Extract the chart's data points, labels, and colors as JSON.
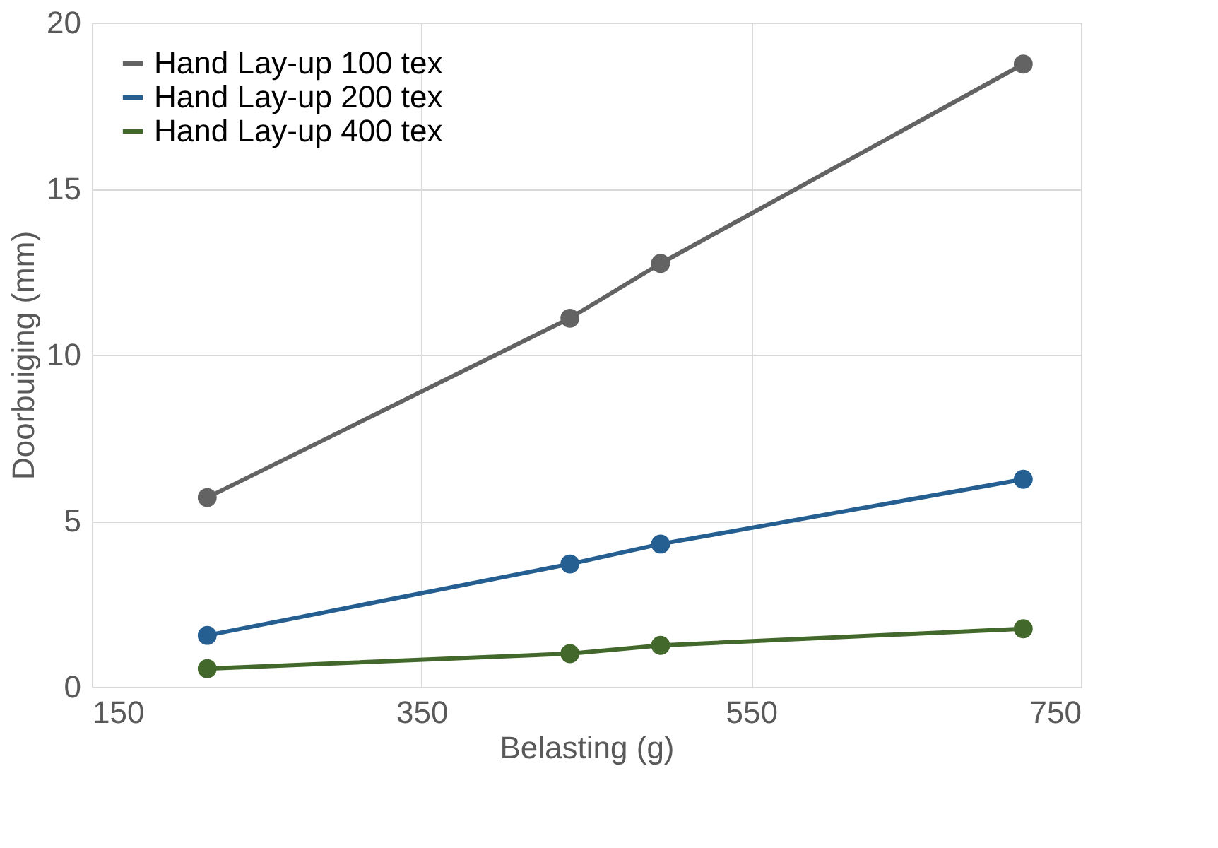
{
  "chart_data": {
    "type": "line",
    "xlabel": "Belasting (g)",
    "ylabel": "Doorbuiging (mm)",
    "x": [
      220,
      440,
      495,
      715
    ],
    "series": [
      {
        "name": "Hand Lay-up 100 tex",
        "color": "#636363",
        "values": [
          5.7,
          11.1,
          12.75,
          18.75
        ]
      },
      {
        "name": "Hand Lay-up 200 tex",
        "color": "#255e91",
        "values": [
          1.55,
          3.7,
          4.3,
          6.25
        ]
      },
      {
        "name": "Hand Lay-up 400 tex",
        "color": "#43682b",
        "values": [
          0.55,
          1.0,
          1.25,
          1.75
        ]
      }
    ],
    "xlim": [
      150,
      750
    ],
    "xticks": [
      150,
      350,
      550,
      750
    ],
    "ylim": [
      0,
      20
    ],
    "yticks": [
      0,
      5,
      10,
      15,
      20
    ],
    "grid": true,
    "legend": "top left",
    "marker": "circle",
    "line_style": "solid"
  }
}
